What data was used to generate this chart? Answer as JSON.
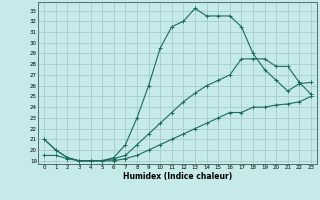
{
  "xlabel": "Humidex (Indice chaleur)",
  "background_color": "#c6eaea",
  "grid_color": "#a8cccc",
  "line_color": "#1a6b5a",
  "x_ticks": [
    0,
    1,
    2,
    3,
    4,
    5,
    6,
    7,
    8,
    9,
    10,
    11,
    12,
    13,
    14,
    15,
    16,
    17,
    18,
    19,
    20,
    21,
    22,
    23
  ],
  "y_ticks": [
    19,
    20,
    21,
    22,
    23,
    24,
    25,
    26,
    27,
    28,
    29,
    30,
    31,
    32,
    33
  ],
  "ylim": [
    18.7,
    33.8
  ],
  "xlim": [
    -0.5,
    23.5
  ],
  "line1_y": [
    21.0,
    20.0,
    19.3,
    19.0,
    19.0,
    19.0,
    19.3,
    20.5,
    23.0,
    26.0,
    29.5,
    31.5,
    32.0,
    33.2,
    32.5,
    32.5,
    32.5,
    31.5,
    29.0,
    27.5,
    26.5,
    25.5,
    26.2,
    26.3
  ],
  "line2_y": [
    21.0,
    20.0,
    19.3,
    19.0,
    19.0,
    19.0,
    19.2,
    19.5,
    20.5,
    21.5,
    22.5,
    23.5,
    24.5,
    25.3,
    26.0,
    26.5,
    27.0,
    28.5,
    28.5,
    28.5,
    27.8,
    27.8,
    26.3,
    25.2
  ],
  "line3_y": [
    19.5,
    19.5,
    19.2,
    19.0,
    19.0,
    19.0,
    19.0,
    19.2,
    19.5,
    20.0,
    20.5,
    21.0,
    21.5,
    22.0,
    22.5,
    23.0,
    23.5,
    23.5,
    24.0,
    24.0,
    24.2,
    24.3,
    24.5,
    25.0
  ]
}
